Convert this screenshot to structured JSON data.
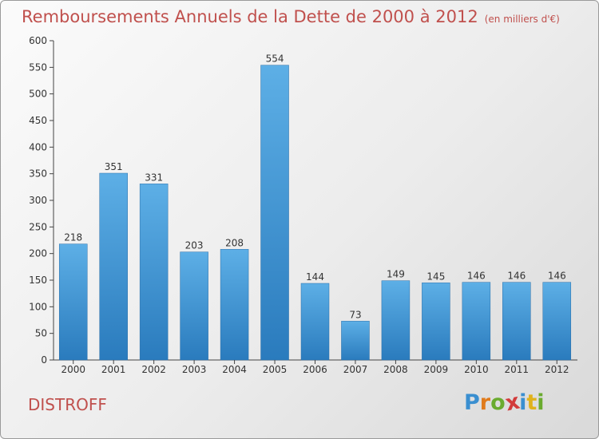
{
  "chart_data": {
    "type": "bar",
    "title": "Remboursements Annuels de la Dette de 2000 à 2012",
    "subtitle": "(en milliers d'€)",
    "categories": [
      "2000",
      "2001",
      "2002",
      "2003",
      "2004",
      "2005",
      "2006",
      "2007",
      "2008",
      "2009",
      "2010",
      "2011",
      "2012"
    ],
    "values": [
      218,
      351,
      331,
      203,
      208,
      554,
      144,
      73,
      149,
      145,
      146,
      146,
      146
    ],
    "ylim": [
      0,
      600
    ],
    "yticks": [
      0,
      50,
      100,
      150,
      200,
      250,
      300,
      350,
      400,
      450,
      500,
      550,
      600
    ],
    "grid": false,
    "bar_color": "#4a9fd8"
  },
  "footer": {
    "town": "DISTROFF",
    "logo_letters": [
      {
        "ch": "P",
        "color": "#3a8fd0"
      },
      {
        "ch": "r",
        "color": "#e07b1c"
      },
      {
        "ch": "o",
        "color": "#6aab2f"
      },
      {
        "ch": "x",
        "color": "#d23b3b"
      },
      {
        "ch": "i",
        "color": "#3a8fd0"
      },
      {
        "ch": "t",
        "color": "#e0b21c"
      },
      {
        "ch": "i",
        "color": "#6aab2f"
      }
    ]
  }
}
